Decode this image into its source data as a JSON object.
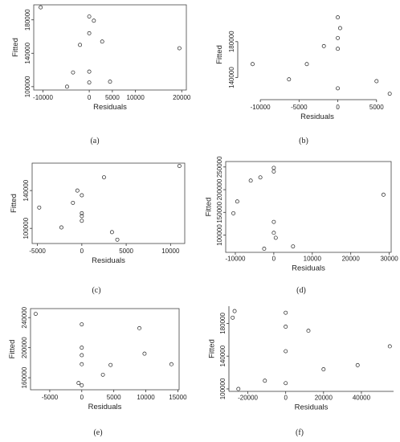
{
  "chart_data": [
    {
      "type": "scatter",
      "panel_label": "(a)",
      "xlabel": "Residuals",
      "ylabel": "Fitted",
      "xlim": [
        -12000,
        21000
      ],
      "ylim": [
        96000,
        198000
      ],
      "xticks": [
        {
          "v": -10000,
          "label": "-10000"
        },
        {
          "v": 0,
          "label": "0"
        },
        {
          "v": 5000,
          "label": "5000"
        },
        {
          "v": 10000,
          "label": "10000"
        },
        {
          "v": 20000,
          "label": "20000"
        }
      ],
      "yticks": [
        {
          "v": 100000,
          "label": "100000"
        },
        {
          "v": 140000,
          "label": "140000"
        },
        {
          "v": 180000,
          "label": "180000"
        }
      ],
      "points": [
        {
          "x": -10500,
          "y": 195000
        },
        {
          "x": -2000,
          "y": 150000
        },
        {
          "x": -3500,
          "y": 117000
        },
        {
          "x": -4800,
          "y": 100000
        },
        {
          "x": 0,
          "y": 184000
        },
        {
          "x": 0,
          "y": 164000
        },
        {
          "x": 0,
          "y": 118000
        },
        {
          "x": 0,
          "y": 105000
        },
        {
          "x": 1000,
          "y": 179000
        },
        {
          "x": 2800,
          "y": 154000
        },
        {
          "x": 4500,
          "y": 106000
        },
        {
          "x": 19500,
          "y": 146000
        }
      ]
    },
    {
      "type": "scatter",
      "panel_label": "(b)",
      "xlabel": "Residuals",
      "ylabel": "Fitted",
      "xlim": [
        -12500,
        7200
      ],
      "ylim": [
        119000,
        212000
      ],
      "xticks": [
        {
          "v": -10000,
          "label": "-10000"
        },
        {
          "v": -5000,
          "label": "-5000"
        },
        {
          "v": 0,
          "label": "0"
        },
        {
          "v": 5000,
          "label": "5000"
        }
      ],
      "yticks": [
        {
          "v": 140000,
          "label": "140000"
        },
        {
          "v": 180000,
          "label": "180000"
        }
      ],
      "points": [
        {
          "x": -11000,
          "y": 155000
        },
        {
          "x": -6300,
          "y": 138000
        },
        {
          "x": -4000,
          "y": 155000
        },
        {
          "x": -1800,
          "y": 175000
        },
        {
          "x": 0,
          "y": 207000
        },
        {
          "x": 300,
          "y": 195000
        },
        {
          "x": 0,
          "y": 184000
        },
        {
          "x": 0,
          "y": 172000
        },
        {
          "x": 0,
          "y": 128000
        },
        {
          "x": 5000,
          "y": 136000
        },
        {
          "x": 6700,
          "y": 122000
        }
      ]
    },
    {
      "type": "scatter",
      "panel_label": "(c)",
      "xlabel": "Residuals",
      "ylabel": "Fitted",
      "xlim": [
        -5600,
        11600
      ],
      "ylim": [
        84000,
        169000
      ],
      "xticks": [
        {
          "v": -5000,
          "label": "-5000"
        },
        {
          "v": 0,
          "label": "0"
        },
        {
          "v": 5000,
          "label": "5000"
        },
        {
          "v": 10000,
          "label": "10000"
        }
      ],
      "yticks": [
        {
          "v": 100000,
          "label": "100000"
        },
        {
          "v": 140000,
          "label": "140000"
        }
      ],
      "points": [
        {
          "x": -4800,
          "y": 122000
        },
        {
          "x": -2300,
          "y": 101000
        },
        {
          "x": -1000,
          "y": 127000
        },
        {
          "x": -500,
          "y": 140000
        },
        {
          "x": 0,
          "y": 135000
        },
        {
          "x": 0,
          "y": 116000
        },
        {
          "x": 0,
          "y": 113000
        },
        {
          "x": 0,
          "y": 108000
        },
        {
          "x": 2500,
          "y": 154000
        },
        {
          "x": 3400,
          "y": 96000
        },
        {
          "x": 4000,
          "y": 88000
        },
        {
          "x": 11000,
          "y": 166000
        }
      ]
    },
    {
      "type": "scatter",
      "panel_label": "(d)",
      "xlabel": "Residuals",
      "ylabel": "Fitted",
      "xlim": [
        -12500,
        30500
      ],
      "ylim": [
        62000,
        262000
      ],
      "xticks": [
        {
          "v": -10000,
          "label": "-10000"
        },
        {
          "v": 0,
          "label": "0"
        },
        {
          "v": 10000,
          "label": "10000"
        },
        {
          "v": 20000,
          "label": "20000"
        },
        {
          "v": 30000,
          "label": "30000"
        }
      ],
      "yticks": [
        {
          "v": 100000,
          "label": "100000"
        },
        {
          "v": 150000,
          "label": "150000"
        },
        {
          "v": 200000,
          "label": "200000"
        },
        {
          "v": 250000,
          "label": "250000"
        }
      ],
      "points": [
        {
          "x": -10500,
          "y": 148000
        },
        {
          "x": -9500,
          "y": 174000
        },
        {
          "x": -6000,
          "y": 220000
        },
        {
          "x": -3500,
          "y": 227000
        },
        {
          "x": -2500,
          "y": 70000
        },
        {
          "x": 0,
          "y": 248000
        },
        {
          "x": 0,
          "y": 240000
        },
        {
          "x": 0,
          "y": 129000
        },
        {
          "x": 0,
          "y": 105000
        },
        {
          "x": 500,
          "y": 94000
        },
        {
          "x": 5000,
          "y": 75000
        },
        {
          "x": 28500,
          "y": 189000
        }
      ]
    },
    {
      "type": "scatter",
      "panel_label": "(e)",
      "xlabel": "Residuals",
      "ylabel": "Fitted",
      "xlim": [
        -8000,
        15200
      ],
      "ylim": [
        144000,
        252000
      ],
      "xticks": [
        {
          "v": -5000,
          "label": "-5000"
        },
        {
          "v": 0,
          "label": "0"
        },
        {
          "v": 5000,
          "label": "5000"
        },
        {
          "v": 10000,
          "label": "10000"
        },
        {
          "v": 15000,
          "label": "15000"
        }
      ],
      "yticks": [
        {
          "v": 160000,
          "label": "160000"
        },
        {
          "v": 200000,
          "label": "200000"
        },
        {
          "v": 240000,
          "label": "240000"
        }
      ],
      "points": [
        {
          "x": -7200,
          "y": 245000
        },
        {
          "x": 0,
          "y": 231000
        },
        {
          "x": 0,
          "y": 200000
        },
        {
          "x": 0,
          "y": 190000
        },
        {
          "x": 0,
          "y": 178000
        },
        {
          "x": -500,
          "y": 153000
        },
        {
          "x": 0,
          "y": 150000
        },
        {
          "x": 3300,
          "y": 164000
        },
        {
          "x": 4500,
          "y": 177000
        },
        {
          "x": 9000,
          "y": 226000
        },
        {
          "x": 9800,
          "y": 192000
        },
        {
          "x": 14000,
          "y": 178000
        }
      ]
    },
    {
      "type": "scatter",
      "panel_label": "(f)",
      "xlabel": "Residuals",
      "ylabel": "Fitted",
      "xlim": [
        -30000,
        57000
      ],
      "ylim": [
        97000,
        201000
      ],
      "xticks": [
        {
          "v": -20000,
          "label": "-20000"
        },
        {
          "v": 0,
          "label": "0"
        },
        {
          "v": 20000,
          "label": "20000"
        },
        {
          "v": 40000,
          "label": "40000"
        }
      ],
      "yticks": [
        {
          "v": 100000,
          "label": "100000"
        },
        {
          "v": 140000,
          "label": "140000"
        },
        {
          "v": 180000,
          "label": "180000"
        }
      ],
      "points": [
        {
          "x": -27000,
          "y": 195000
        },
        {
          "x": -28000,
          "y": 187000
        },
        {
          "x": -25000,
          "y": 100000
        },
        {
          "x": -11000,
          "y": 110000
        },
        {
          "x": 0,
          "y": 193000
        },
        {
          "x": 0,
          "y": 176000
        },
        {
          "x": 0,
          "y": 146000
        },
        {
          "x": 0,
          "y": 107000
        },
        {
          "x": 12000,
          "y": 171000
        },
        {
          "x": 20000,
          "y": 124000
        },
        {
          "x": 38000,
          "y": 129000
        },
        {
          "x": 55000,
          "y": 152000
        }
      ]
    }
  ]
}
